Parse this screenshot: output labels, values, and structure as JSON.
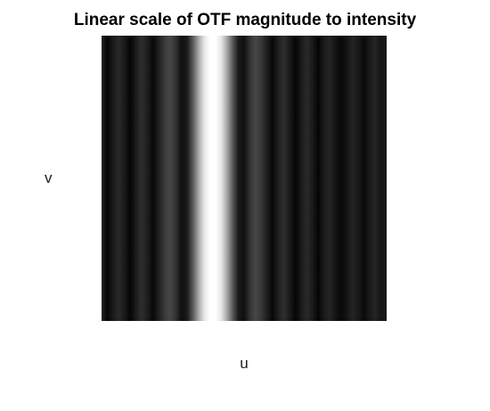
{
  "chart_data": {
    "type": "heatmap",
    "title": "Linear scale of OTF magnitude to intensity",
    "xlabel": "u",
    "ylabel": "v",
    "colormap": "gray",
    "grid": false,
    "axis_ticks": false,
    "profile_along_u": {
      "description_of_values": "normalized intensity (0=black, 1=white), constant along v",
      "u_position_fraction": [
        0.0,
        0.02,
        0.04,
        0.06,
        0.08,
        0.1,
        0.12,
        0.14,
        0.16,
        0.18,
        0.2,
        0.22,
        0.24,
        0.26,
        0.28,
        0.3,
        0.32,
        0.34,
        0.36,
        0.38,
        0.4,
        0.42,
        0.44,
        0.46,
        0.48,
        0.5,
        0.52,
        0.54,
        0.56,
        0.58,
        0.6,
        0.62,
        0.64,
        0.66,
        0.68,
        0.7,
        0.72,
        0.74,
        0.76,
        0.78,
        0.8,
        0.82,
        0.84,
        0.86,
        0.88,
        0.9,
        0.92,
        0.94,
        0.96,
        0.98,
        1.0
      ],
      "intensity": [
        0.14,
        0.02,
        0.1,
        0.16,
        0.1,
        0.02,
        0.1,
        0.18,
        0.12,
        0.03,
        0.12,
        0.22,
        0.28,
        0.2,
        0.06,
        0.1,
        0.35,
        0.65,
        0.9,
        1.0,
        1.0,
        0.9,
        0.65,
        0.35,
        0.1,
        0.06,
        0.2,
        0.28,
        0.22,
        0.12,
        0.03,
        0.12,
        0.18,
        0.1,
        0.02,
        0.1,
        0.16,
        0.1,
        0.02,
        0.1,
        0.14,
        0.08,
        0.03,
        0.08,
        0.14,
        0.1,
        0.04,
        0.1,
        0.14,
        0.08,
        0.1
      ]
    }
  }
}
